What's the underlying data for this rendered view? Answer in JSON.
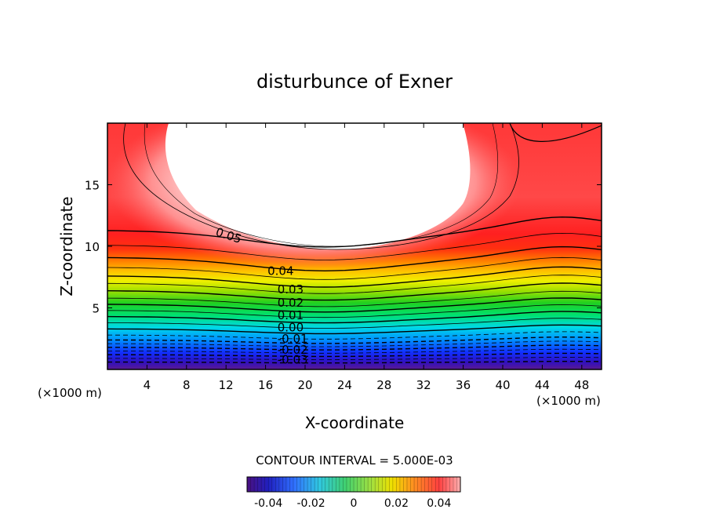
{
  "chart_data": {
    "type": "contour",
    "title": "disturbunce of Exner",
    "xlabel": "X-coordinate",
    "ylabel": "Z-coordinate",
    "x_unit_left": "(×1000 m)",
    "x_unit_right": "(×1000 m)",
    "xlim": [
      0,
      50
    ],
    "ylim": [
      0,
      20
    ],
    "x_ticks": [
      4,
      8,
      12,
      16,
      20,
      24,
      28,
      32,
      36,
      40,
      44,
      48
    ],
    "y_ticks": [
      5,
      10,
      15
    ],
    "contour_interval_label": "CONTOUR INTERVAL = 5.000E-03",
    "contour_labels": [
      {
        "text": "0.05",
        "x": 11,
        "z": 11.2
      },
      {
        "text": "0.04",
        "x": 16.2,
        "z": 8.0
      },
      {
        "text": "0.03",
        "x": 17.2,
        "z": 6.5
      },
      {
        "text": "0.02",
        "x": 17.2,
        "z": 5.4
      },
      {
        "text": "0.01",
        "x": 17.2,
        "z": 4.4
      },
      {
        "text": "0.00",
        "x": 17.2,
        "z": 3.4
      },
      {
        "text": "-0.01",
        "x": 17.2,
        "z": 2.5
      },
      {
        "text": "-0.02",
        "x": 17.2,
        "z": 1.6
      },
      {
        "text": "-0.03",
        "x": 17.2,
        "z": 0.8
      }
    ],
    "colorbar": {
      "ticks": [
        "-0.04",
        "-0.02",
        "0",
        "0.02",
        "0.04"
      ],
      "range": [
        -0.05,
        0.05
      ]
    }
  }
}
